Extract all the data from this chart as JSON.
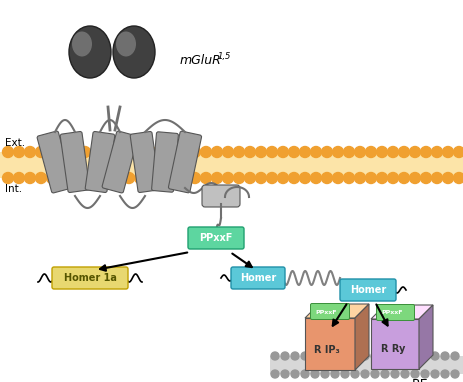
{
  "bg_color": "#ffffff",
  "membrane_dot_color": "#f0a030",
  "helix_color": "#707070",
  "helix_face": "#a0a0a0",
  "helix_edge": "#555555",
  "ppxxf_color": "#5dd6a0",
  "ppxxf_edge": "#20a070",
  "homer1a_color": "#e8d870",
  "homer1a_edge": "#c0a000",
  "homer_color": "#5bc8d8",
  "homer_edge": "#2090a8",
  "rip3_color": "#e8956d",
  "rry_color": "#c89edd",
  "green_label": "#7dd87d",
  "green_label_edge": "#3a903a",
  "er_dot_color": "#999999",
  "ppxxf_label": "PPxxF",
  "homer1a_label": "Homer 1a",
  "homer_label": "Homer",
  "rip3_label": "R IP₃",
  "rry_label": "R Ry",
  "ext_label": "Ext.",
  "int_label": "Int.",
  "mglur_label": "mGluR",
  "mglur_sub": "1,5",
  "re_label": "RE",
  "fig_width": 4.63,
  "fig_height": 3.82,
  "dpi": 100
}
